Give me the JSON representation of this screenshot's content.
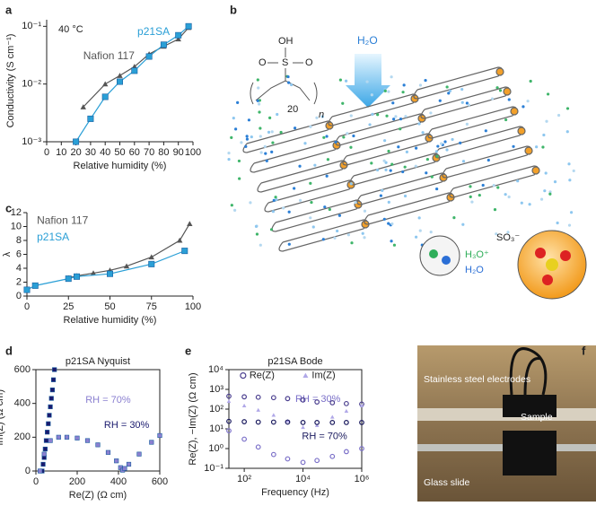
{
  "panel_labels": [
    "a",
    "b",
    "c",
    "d",
    "e",
    "f"
  ],
  "chart_data": [
    {
      "type": "line",
      "xlabel": "Relative humidity (%)",
      "ylabel": "Conductivity (S cm⁻¹)",
      "ylog": true,
      "xlim": [
        0,
        100
      ],
      "xticks": [
        0,
        10,
        20,
        30,
        40,
        50,
        60,
        70,
        80,
        90,
        100
      ],
      "ylim": [
        0.001,
        0.13
      ],
      "yticks": [
        {
          "value": 0.001,
          "label": "10⁻³"
        },
        {
          "value": 0.01,
          "label": "10⁻²"
        },
        {
          "value": 0.1,
          "label": "10⁻¹"
        }
      ],
      "annotations": [
        "40 °C"
      ],
      "series": [
        {
          "name": "Nafion 117",
          "color": "#555555",
          "marker": "triangle",
          "x": [
            25,
            40,
            50,
            60,
            70,
            80,
            90,
            97
          ],
          "values": [
            0.004,
            0.01,
            0.014,
            0.02,
            0.033,
            0.045,
            0.06,
            0.095
          ]
        },
        {
          "name": "p21SA",
          "color": "#2a9fd6",
          "marker": "square",
          "x": [
            20,
            30,
            40,
            50,
            60,
            70,
            80,
            90,
            97
          ],
          "values": [
            0.001,
            0.0025,
            0.006,
            0.011,
            0.017,
            0.03,
            0.048,
            0.07,
            0.1
          ]
        }
      ]
    },
    {
      "type": "line",
      "xlabel": "Relative humidity (%)",
      "ylabel": "λ",
      "xlim": [
        0,
        100
      ],
      "xticks": [
        0,
        25,
        50,
        75,
        100
      ],
      "ylim": [
        0,
        12
      ],
      "yticks": [
        0,
        2,
        4,
        6,
        8,
        10,
        12
      ],
      "series": [
        {
          "name": "Nafion 117",
          "color": "#555555",
          "marker": "triangle",
          "x": [
            25,
            30,
            40,
            50,
            60,
            75,
            92,
            98
          ],
          "values": [
            2.6,
            2.9,
            3.3,
            3.7,
            4.3,
            5.6,
            8,
            10.4
          ]
        },
        {
          "name": "p21SA",
          "color": "#2a9fd6",
          "marker": "square",
          "x": [
            0,
            5,
            25,
            30,
            50,
            75,
            95
          ],
          "values": [
            0.9,
            1.5,
            2.5,
            2.8,
            3.2,
            4.6,
            6.5
          ]
        }
      ]
    },
    {
      "type": "scatter",
      "title": "p21SA Nyquist",
      "xlabel": "Re(Z) (Ω cm)",
      "ylabel": "−Im(Z) (Ω cm)",
      "xlim": [
        0,
        600
      ],
      "xticks": [
        0,
        200,
        400,
        600
      ],
      "ylim": [
        0,
        600
      ],
      "yticks": [
        0,
        200,
        400,
        600
      ],
      "annotations": [
        "RH = 70%",
        "RH = 30%"
      ],
      "series": [
        {
          "color": "#1a1a6e",
          "marker": "square",
          "x": [
            30,
            35,
            40,
            45,
            50,
            55,
            60,
            65,
            70,
            75,
            80,
            85,
            90
          ],
          "values": [
            0,
            40,
            80,
            130,
            180,
            230,
            280,
            330,
            380,
            430,
            480,
            540,
            600
          ]
        },
        {
          "color": "#8a7fd0",
          "marker": "square",
          "x": [
            20,
            40,
            70,
            110,
            150,
            200,
            250,
            300,
            350,
            390,
            410,
            420,
            430,
            450,
            500,
            560,
            600
          ],
          "values": [
            0,
            100,
            180,
            200,
            200,
            195,
            180,
            155,
            110,
            60,
            20,
            5,
            15,
            40,
            100,
            170,
            210
          ]
        }
      ]
    },
    {
      "type": "scatter",
      "title": "p21SA Bode",
      "xlabel": "Frequency (Hz)",
      "ylabel": "Re(Z), −Im(Z) (Ω cm)",
      "xlog": true,
      "ylog": true,
      "xlim": [
        30,
        1000000
      ],
      "xticks": [
        {
          "value": 100,
          "label": "10²"
        },
        {
          "value": 10000,
          "label": "10⁴"
        },
        {
          "value": 1000000,
          "label": "10⁶"
        }
      ],
      "ylim": [
        0.1,
        10000
      ],
      "yticks": [
        {
          "value": 0.1,
          "label": "10⁻¹"
        },
        {
          "value": 1,
          "label": "10⁰"
        },
        {
          "value": 10,
          "label": "10¹"
        },
        {
          "value": 100,
          "label": "10²"
        },
        {
          "value": 1000,
          "label": "10³"
        },
        {
          "value": 10000,
          "label": "10⁴"
        }
      ],
      "annotations": [
        "RH = 30%",
        "RH = 70%"
      ],
      "series": [
        {
          "name": "Re(Z)",
          "color": "#4b3f8f",
          "marker": "circle",
          "x": [
            30,
            100,
            300,
            1000,
            3000,
            10000,
            30000,
            100000,
            300000,
            1000000
          ],
          "values": [
            450,
            420,
            400,
            380,
            340,
            290,
            230,
            210,
            190,
            180
          ]
        },
        {
          "name": "Im(Z)",
          "color": "#b0a8e8",
          "marker": "triangle",
          "x": [
            30,
            100,
            300,
            1000,
            3000,
            10000,
            30000,
            100000,
            300000,
            1000000
          ],
          "values": [
            250,
            150,
            90,
            50,
            25,
            12,
            15,
            40,
            80,
            150
          ]
        },
        {
          "color": "#1a1a5e",
          "marker": "circle",
          "x": [
            30,
            100,
            300,
            1000,
            3000,
            10000,
            30000,
            100000,
            300000,
            1000000
          ],
          "values": [
            24,
            23,
            22,
            22,
            22,
            21,
            21,
            21,
            21,
            21
          ]
        },
        {
          "color": "#7a6fc8",
          "marker": "circle",
          "x": [
            30,
            100,
            300,
            1000,
            3000,
            10000,
            30000,
            100000,
            300000,
            1000000
          ],
          "values": [
            8,
            3,
            1.2,
            0.5,
            0.3,
            0.2,
            0.25,
            0.4,
            0.7,
            1
          ]
        }
      ]
    }
  ],
  "illustration": {
    "structure": [
      "OH",
      "S",
      "O",
      "O",
      "20",
      "n"
    ],
    "water": "H₂O",
    "sulfonate": "SO₃⁻",
    "hydronium": "H₃O⁺",
    "water_small": "H₂O"
  },
  "photo": {
    "electrodes": "Stainless steel electrodes",
    "sample": "Sample",
    "slide": "Glass slide"
  }
}
